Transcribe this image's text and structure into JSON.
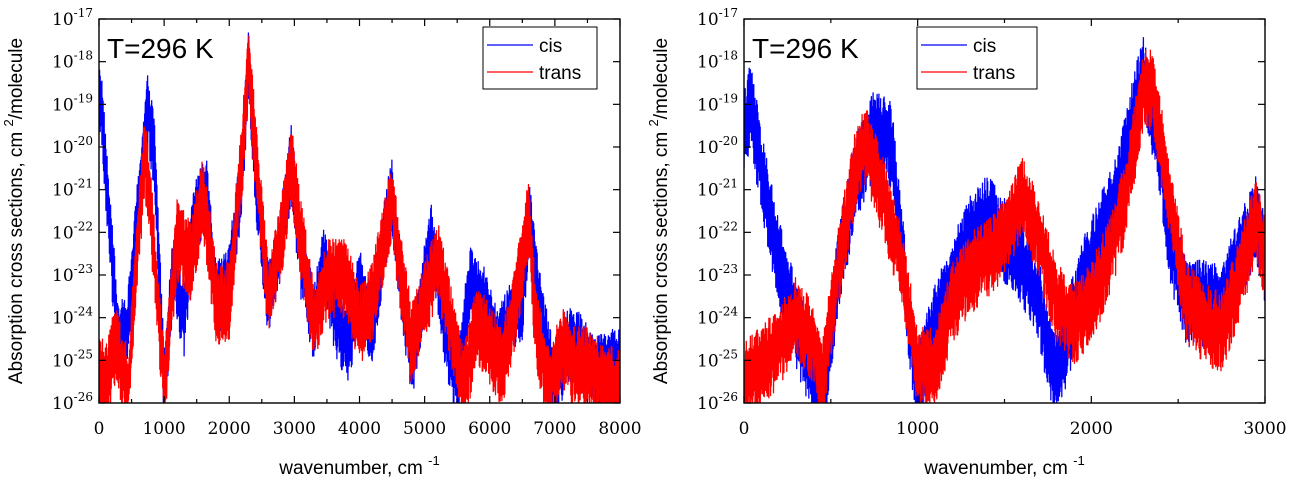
{
  "chart_data": [
    {
      "type": "line",
      "annotation": "T=296 K",
      "xlabel": "wavenumber, cm",
      "xlabel_sup": "-1",
      "ylabel": "Absorption cross sections, cm",
      "ylabel_sup": "2",
      "ylabel_tail": "/molecule",
      "xlim": [
        0,
        8000
      ],
      "ylim_log10": [
        -26,
        -17
      ],
      "y_scale": "log",
      "grid": false,
      "legend_placement": "top-right",
      "x_ticks": [
        "0",
        "1000",
        "2000",
        "3000",
        "4000",
        "5000",
        "6000",
        "7000",
        "8000"
      ],
      "y_tick_exponents": [
        "-26",
        "-25",
        "-24",
        "-23",
        "-22",
        "-21",
        "-20",
        "-19",
        "-18",
        "-17"
      ],
      "series": [
        {
          "name": "cis",
          "color": "#0000ff",
          "x": [
            0,
            40,
            150,
            300,
            450,
            650,
            750,
            850,
            1000,
            1150,
            1300,
            1450,
            1650,
            1800,
            2000,
            2200,
            2300,
            2400,
            2600,
            2800,
            2950,
            3100,
            3300,
            3450,
            3650,
            3850,
            4000,
            4200,
            4400,
            4500,
            4600,
            4800,
            4950,
            5100,
            5300,
            5500,
            5700,
            5900,
            6100,
            6300,
            6500,
            6600,
            6800,
            7000,
            7200,
            7400,
            7600,
            7800,
            8000
          ],
          "y_log10": [
            -18.5,
            -19.0,
            -21.5,
            -24.5,
            -24.0,
            -20.5,
            -19.0,
            -20.0,
            -25.5,
            -22.5,
            -24.0,
            -21.5,
            -21.0,
            -23.5,
            -23.0,
            -20.5,
            -17.8,
            -20.5,
            -23.5,
            -22.0,
            -20.2,
            -22.5,
            -24.0,
            -22.5,
            -24.0,
            -24.5,
            -23.0,
            -24.2,
            -21.8,
            -21.0,
            -22.5,
            -25.0,
            -23.5,
            -22.0,
            -24.0,
            -25.5,
            -23.0,
            -23.5,
            -24.5,
            -24.0,
            -23.5,
            -21.5,
            -24.0,
            -25.5,
            -24.5,
            -24.5,
            -25.2,
            -25.0,
            -25.0
          ],
          "band_half_width_log10": 0.75
        },
        {
          "name": "trans",
          "color": "#ff0000",
          "x": [
            0,
            100,
            250,
            450,
            600,
            700,
            800,
            1000,
            1200,
            1400,
            1600,
            1800,
            2000,
            2200,
            2300,
            2400,
            2600,
            2800,
            2950,
            3100,
            3300,
            3500,
            3700,
            3850,
            4000,
            4200,
            4400,
            4500,
            4650,
            4800,
            5000,
            5200,
            5400,
            5600,
            5800,
            6000,
            6200,
            6400,
            6600,
            6700,
            6900,
            7100,
            7300,
            7500,
            7700,
            7900,
            8000
          ],
          "y_log10": [
            -25.0,
            -25.5,
            -24.5,
            -25.5,
            -22.0,
            -20.0,
            -21.5,
            -25.5,
            -22.0,
            -22.5,
            -21.0,
            -23.5,
            -23.5,
            -20.0,
            -17.9,
            -20.0,
            -23.5,
            -22.0,
            -20.2,
            -22.0,
            -24.0,
            -23.0,
            -22.8,
            -23.2,
            -24.0,
            -23.5,
            -21.8,
            -21.2,
            -23.0,
            -24.5,
            -23.5,
            -22.5,
            -24.0,
            -25.5,
            -24.0,
            -24.5,
            -25.0,
            -23.5,
            -21.5,
            -24.0,
            -25.5,
            -24.5,
            -25.0,
            -25.0,
            -25.3,
            -25.5,
            -25.5
          ],
          "band_half_width_log10": 0.8
        }
      ]
    },
    {
      "type": "line",
      "annotation": "T=296 K",
      "xlabel": "wavenumber, cm",
      "xlabel_sup": "-1",
      "ylabel": "Absorption cross sections, cm",
      "ylabel_sup": "2",
      "ylabel_tail": "/molecule",
      "xlim": [
        0,
        3000
      ],
      "ylim_log10": [
        -26,
        -17
      ],
      "y_scale": "log",
      "grid": false,
      "legend_placement": "top-right",
      "x_ticks": [
        "0",
        "1000",
        "2000",
        "3000"
      ],
      "y_tick_exponents": [
        "-26",
        "-25",
        "-24",
        "-23",
        "-22",
        "-21",
        "-20",
        "-19",
        "-18",
        "-17"
      ],
      "series": [
        {
          "name": "cis",
          "color": "#0000ff",
          "x": [
            0,
            40,
            100,
            200,
            300,
            400,
            450,
            550,
            650,
            750,
            850,
            950,
            1000,
            1100,
            1200,
            1300,
            1400,
            1500,
            1600,
            1700,
            1780,
            1850,
            1950,
            2050,
            2150,
            2250,
            2300,
            2380,
            2450,
            2550,
            2650,
            2750,
            2850,
            2950,
            3000
          ],
          "y_log10": [
            -19.5,
            -18.8,
            -20.5,
            -22.5,
            -24.0,
            -25.2,
            -26.0,
            -22.5,
            -20.5,
            -19.5,
            -19.8,
            -24.0,
            -25.5,
            -24.0,
            -23.0,
            -22.0,
            -21.5,
            -22.0,
            -22.5,
            -23.5,
            -25.2,
            -24.5,
            -23.0,
            -22.0,
            -21.0,
            -19.0,
            -18.2,
            -19.5,
            -22.0,
            -23.5,
            -23.5,
            -23.5,
            -22.5,
            -21.5,
            -22.5
          ],
          "band_half_width_log10": 0.85
        },
        {
          "name": "trans",
          "color": "#ff0000",
          "x": [
            0,
            100,
            200,
            300,
            400,
            450,
            550,
            650,
            700,
            800,
            900,
            1000,
            1100,
            1200,
            1300,
            1400,
            1500,
            1600,
            1700,
            1800,
            1900,
            2000,
            2100,
            2200,
            2300,
            2350,
            2450,
            2550,
            2650,
            2750,
            2850,
            2950,
            3000
          ],
          "y_log10": [
            -25.3,
            -25.0,
            -24.5,
            -23.8,
            -24.5,
            -25.3,
            -22.5,
            -20.2,
            -19.8,
            -21.0,
            -22.5,
            -25.0,
            -25.0,
            -23.5,
            -22.8,
            -22.5,
            -22.0,
            -21.0,
            -22.0,
            -23.5,
            -24.0,
            -23.5,
            -22.5,
            -21.0,
            -18.5,
            -18.5,
            -21.0,
            -23.5,
            -24.0,
            -24.2,
            -23.0,
            -21.5,
            -22.5
          ],
          "band_half_width_log10": 0.8
        }
      ]
    }
  ]
}
